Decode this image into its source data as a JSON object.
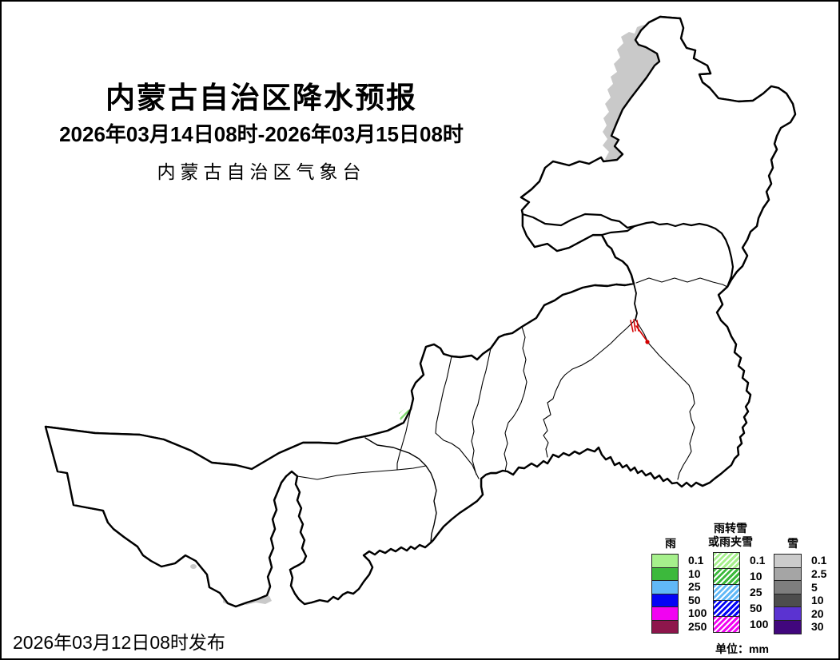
{
  "title": "内蒙古自治区降水预报",
  "valid_period": "2026年03月14日08时-2026年03月15日08时",
  "agency": "内蒙古自治区气象台",
  "issued_at": "2026年03月12日08时发布",
  "legend": {
    "unit": "单位：mm",
    "columns": [
      {
        "id": "rain",
        "header_lines": [
          "雨"
        ],
        "hatched": false,
        "rows": [
          {
            "value": "0.1",
            "color": "#A6F08C"
          },
          {
            "value": "10",
            "color": "#3CB93C"
          },
          {
            "value": "25",
            "color": "#61B8F7"
          },
          {
            "value": "50",
            "color": "#0403F5"
          },
          {
            "value": "100",
            "color": "#F103F1"
          },
          {
            "value": "250",
            "color": "#8E164C"
          }
        ]
      },
      {
        "id": "rain-snow-mix",
        "header_lines": [
          "雨转雪",
          "或雨夹雪"
        ],
        "hatched": true,
        "rows": [
          {
            "value": "0.1",
            "color": "#A6F08C"
          },
          {
            "value": "10",
            "color": "#3CB93C"
          },
          {
            "value": "25",
            "color": "#61B8F7"
          },
          {
            "value": "50",
            "color": "#0403F5"
          },
          {
            "value": "100",
            "color": "#F103F1"
          }
        ]
      },
      {
        "id": "snow",
        "header_lines": [
          "雪"
        ],
        "hatched": false,
        "rows": [
          {
            "value": "0.1",
            "color": "#CBCBCB"
          },
          {
            "value": "2.5",
            "color": "#A5A5A5"
          },
          {
            "value": "5",
            "color": "#7E7E7E"
          },
          {
            "value": "10",
            "color": "#4D4D4D"
          },
          {
            "value": "20",
            "color": "#5B33D1"
          },
          {
            "value": "30",
            "color": "#41077D"
          }
        ]
      }
    ]
  },
  "map": {
    "snow_area_color": "#C9C9C9",
    "sleet_hatch_color": "#7FD96F",
    "marker_color": "#D40000",
    "border_color": "#000000"
  }
}
